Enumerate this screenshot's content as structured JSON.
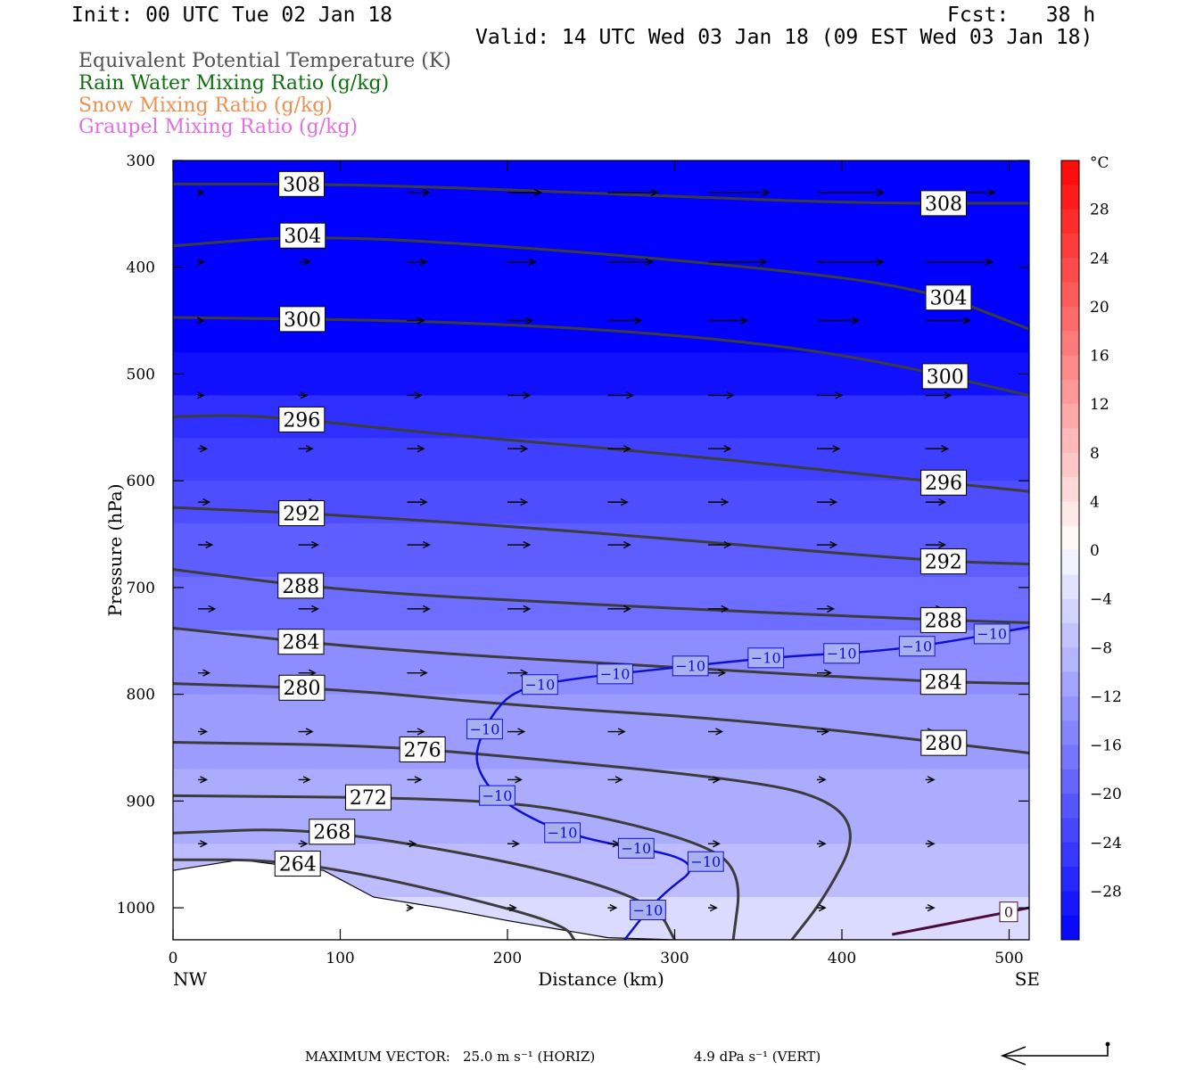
{
  "header": {
    "init": "Init: 00 UTC Tue 02 Jan 18",
    "fcst": "Fcst:   38 h",
    "valid": "Valid: 14 UTC Wed 03 Jan 18 (09 EST Wed 03 Jan 18)"
  },
  "legend": [
    {
      "label": "Equivalent Potential Temperature (K)",
      "color": "#505050"
    },
    {
      "label": "Rain Water Mixing Ratio (g/kg)",
      "color": "#107010"
    },
    {
      "label": "Snow Mixing Ratio (g/kg)",
      "color": "#f09050"
    },
    {
      "label": "Graupel Mixing Ratio (g/kg)",
      "color": "#e070e0"
    }
  ],
  "footer": {
    "max_vector_label": "MAXIMUM VECTOR:",
    "horiz": "25.0 m s⁻¹ (HORIZ)",
    "vert": "4.9 dPa s⁻¹ (VERT)"
  },
  "chart_data": {
    "type": "heatmap",
    "xlabel": "Distance (km)",
    "ylabel": "Pressure (hPa)",
    "xlim": [
      0,
      512
    ],
    "ylim": [
      1030,
      300
    ],
    "x_ticks": [
      0,
      100,
      200,
      300,
      400,
      500
    ],
    "y_ticks": [
      300,
      400,
      500,
      600,
      700,
      800,
      900,
      1000
    ],
    "x_end_labels": {
      "left": "NW",
      "right": "SE"
    },
    "colorbar": {
      "unit": "°C",
      "labels": [
        "28",
        "24",
        "20",
        "16",
        "12",
        "8",
        "4",
        "0",
        "−4",
        "−8",
        "−12",
        "−16",
        "−20",
        "−24",
        "−28"
      ],
      "label_values": [
        28,
        24,
        20,
        16,
        12,
        8,
        4,
        0,
        -4,
        -8,
        -12,
        -16,
        -20,
        -24,
        -28
      ],
      "min": -32,
      "max": 32,
      "step": 2
    },
    "temperature_field_bands": [
      {
        "p": 300,
        "t": -32
      },
      {
        "p": 480,
        "t": -30
      },
      {
        "p": 520,
        "t": -26
      },
      {
        "p": 560,
        "t": -24
      },
      {
        "p": 600,
        "t": -22
      },
      {
        "p": 640,
        "t": -20
      },
      {
        "p": 690,
        "t": -18
      },
      {
        "p": 740,
        "t": -14
      },
      {
        "p": 800,
        "t": -12
      },
      {
        "p": 870,
        "t": -10
      },
      {
        "p": 940,
        "t": -8
      },
      {
        "p": 990,
        "t": -4
      },
      {
        "p": 1030,
        "t": 0
      }
    ],
    "theta_e_contours": [
      {
        "value": 308,
        "labels": [
          "308",
          "308"
        ],
        "points": [
          [
            0,
            322
          ],
          [
            100,
            322
          ],
          [
            250,
            330
          ],
          [
            400,
            340
          ],
          [
            512,
            340
          ]
        ]
      },
      {
        "value": 304,
        "labels": [
          "304",
          "304"
        ],
        "points": [
          [
            0,
            380
          ],
          [
            80,
            370
          ],
          [
            200,
            380
          ],
          [
            350,
            400
          ],
          [
            450,
            420
          ],
          [
            512,
            458
          ]
        ]
      },
      {
        "value": 300,
        "labels": [
          "300",
          "300"
        ],
        "points": [
          [
            0,
            447
          ],
          [
            150,
            450
          ],
          [
            280,
            460
          ],
          [
            400,
            480
          ],
          [
            512,
            520
          ]
        ]
      },
      {
        "value": 296,
        "labels": [
          "296",
          "296"
        ],
        "points": [
          [
            0,
            540
          ],
          [
            50,
            538
          ],
          [
            150,
            555
          ],
          [
            300,
            575
          ],
          [
            450,
            600
          ],
          [
            512,
            610
          ]
        ]
      },
      {
        "value": 292,
        "labels": [
          "292",
          "292"
        ],
        "points": [
          [
            0,
            625
          ],
          [
            100,
            632
          ],
          [
            250,
            648
          ],
          [
            450,
            675
          ],
          [
            512,
            678
          ]
        ]
      },
      {
        "value": 288,
        "labels": [
          "288",
          "288"
        ],
        "points": [
          [
            0,
            683
          ],
          [
            100,
            703
          ],
          [
            250,
            716
          ],
          [
            450,
            730
          ],
          [
            512,
            733
          ]
        ]
      },
      {
        "value": 284,
        "labels": [
          "284",
          "284"
        ],
        "points": [
          [
            0,
            738
          ],
          [
            120,
            758
          ],
          [
            300,
            775
          ],
          [
            450,
            788
          ],
          [
            512,
            790
          ]
        ]
      },
      {
        "value": 280,
        "labels": [
          "280",
          "280"
        ],
        "points": [
          [
            0,
            790
          ],
          [
            100,
            795
          ],
          [
            200,
            810
          ],
          [
            350,
            825
          ],
          [
            512,
            855
          ]
        ]
      },
      {
        "value": 276,
        "labels": [
          "276"
        ],
        "points": [
          [
            0,
            845
          ],
          [
            120,
            848
          ],
          [
            200,
            858
          ],
          [
            330,
            878
          ],
          [
            390,
            895
          ],
          [
            410,
            930
          ],
          [
            390,
            990
          ],
          [
            370,
            1030
          ]
        ]
      },
      {
        "value": 272,
        "labels": [
          "272"
        ],
        "points": [
          [
            0,
            895
          ],
          [
            150,
            897
          ],
          [
            230,
            905
          ],
          [
            320,
            940
          ],
          [
            340,
            970
          ],
          [
            335,
            1030
          ]
        ]
      },
      {
        "value": 268,
        "labels": [
          "268"
        ],
        "points": [
          [
            0,
            930
          ],
          [
            80,
            925
          ],
          [
            180,
            950
          ],
          [
            250,
            975
          ],
          [
            290,
            1000
          ],
          [
            300,
            1030
          ]
        ]
      },
      {
        "value": 264,
        "labels": [
          "264"
        ],
        "points": [
          [
            0,
            955
          ],
          [
            60,
            955
          ],
          [
            120,
            970
          ],
          [
            200,
            1000
          ],
          [
            235,
            1018
          ],
          [
            240,
            1030
          ]
        ]
      }
    ],
    "temperature_contours": [
      {
        "value": -10,
        "labels": [
          "−10",
          "−10",
          "−10",
          "−10",
          "−10",
          "−10",
          "−10",
          "−10",
          "−10",
          "−10",
          "−10",
          "−10",
          "−10"
        ],
        "points": [
          [
            270,
            1030
          ],
          [
            290,
            990
          ],
          [
            320,
            955
          ],
          [
            240,
            935
          ],
          [
            200,
            905
          ],
          [
            185,
            880
          ],
          [
            180,
            855
          ],
          [
            190,
            820
          ],
          [
            205,
            795
          ],
          [
            240,
            785
          ],
          [
            300,
            775
          ],
          [
            360,
            765
          ],
          [
            420,
            760
          ],
          [
            460,
            752
          ],
          [
            512,
            737
          ]
        ]
      },
      {
        "value": 0,
        "labels": [
          "0"
        ],
        "points": [
          [
            430,
            1025
          ],
          [
            480,
            1010
          ],
          [
            512,
            1000
          ]
        ]
      }
    ],
    "terrain_pressure": [
      [
        0,
        965
      ],
      [
        40,
        955
      ],
      [
        90,
        965
      ],
      [
        120,
        990
      ],
      [
        160,
        1000
      ],
      [
        200,
        1012
      ],
      [
        260,
        1028
      ],
      [
        300,
        1030
      ],
      [
        512,
        1030
      ]
    ],
    "wind_vectors": {
      "x": [
        15,
        75,
        140,
        200,
        260,
        320,
        385,
        450
      ],
      "p": [
        330,
        395,
        450,
        520,
        570,
        620,
        660,
        720,
        780,
        835,
        880,
        940,
        1000
      ],
      "u_m_s": [
        [
          2,
          4,
          8,
          12,
          18,
          22,
          24,
          25
        ],
        [
          2,
          4,
          7,
          10,
          16,
          21,
          24,
          24
        ],
        [
          2,
          3,
          6,
          9,
          12,
          14,
          15,
          16
        ],
        [
          2,
          3,
          5,
          8,
          9,
          9,
          9,
          9
        ],
        [
          3,
          5,
          6,
          7,
          8,
          8,
          8,
          8
        ],
        [
          4,
          6,
          7,
          7,
          7,
          7,
          7,
          7
        ],
        [
          5,
          7,
          8,
          8,
          8,
          8,
          7,
          7
        ],
        [
          6,
          7,
          8,
          8,
          8,
          7,
          6,
          6
        ],
        [
          4,
          6,
          7,
          7,
          7,
          6,
          5,
          5
        ],
        [
          3,
          5,
          6,
          6,
          6,
          5,
          4,
          3
        ],
        [
          3,
          4,
          5,
          5,
          5,
          4,
          3,
          3
        ],
        [
          3,
          3,
          3,
          4,
          4,
          4,
          3,
          3
        ],
        [
          2,
          2,
          2,
          3,
          3,
          3,
          3,
          3
        ]
      ]
    }
  }
}
